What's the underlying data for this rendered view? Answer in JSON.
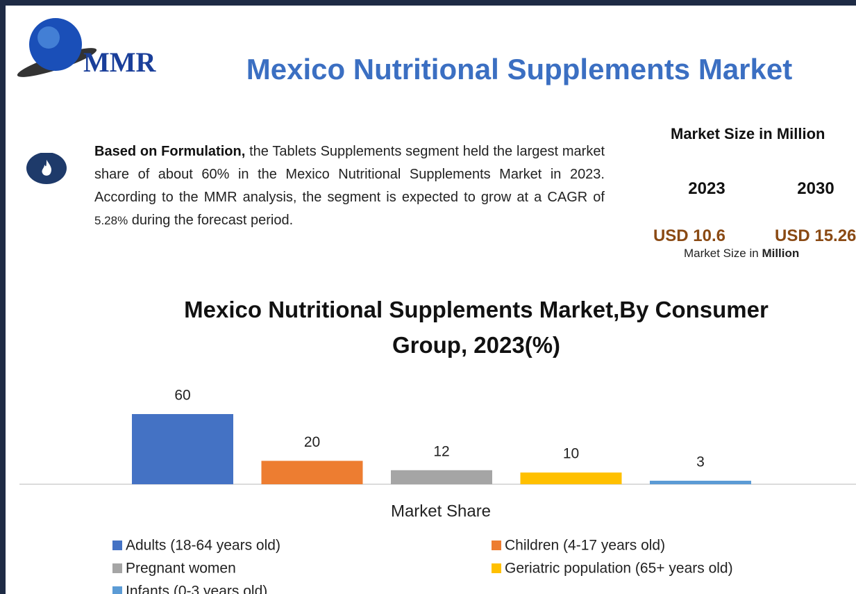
{
  "header": {
    "logo": "MMR",
    "title": "Mexico Nutritional Supplements Market"
  },
  "summary": {
    "lead": "Based on Formulation,",
    "text1": "the Tablets Supplements segment held the largest market share of about 60% in the Mexico Nutritional Supplements Market in 2023. According to the MMR analysis, the segment is expected to grow at a CAGR of",
    "cagr": "5.28%",
    "text2": "during the forecast period."
  },
  "market_size": {
    "title": "Market Size in Million",
    "years": [
      "2023",
      "2030"
    ],
    "values": [
      "USD 10.6",
      "USD 15.26"
    ],
    "note": "Market Size in",
    "note_unit": "Million"
  },
  "chart_data": {
    "type": "bar",
    "title": "Mexico Nutritional Supplements Market,By Consumer Group, 2023(%)",
    "x_label": "Market Share",
    "categories": [
      "Adults (18-64 years old)",
      "Children (4-17 years old)",
      "Pregnant women",
      "Geriatric population (65+ years old)",
      "Infants (0-3 years old)"
    ],
    "values": [
      60,
      20,
      12,
      10,
      3
    ],
    "colors": [
      "#4472c4",
      "#ed7d31",
      "#a5a5a5",
      "#ffc000",
      "#5b9bd5"
    ]
  }
}
